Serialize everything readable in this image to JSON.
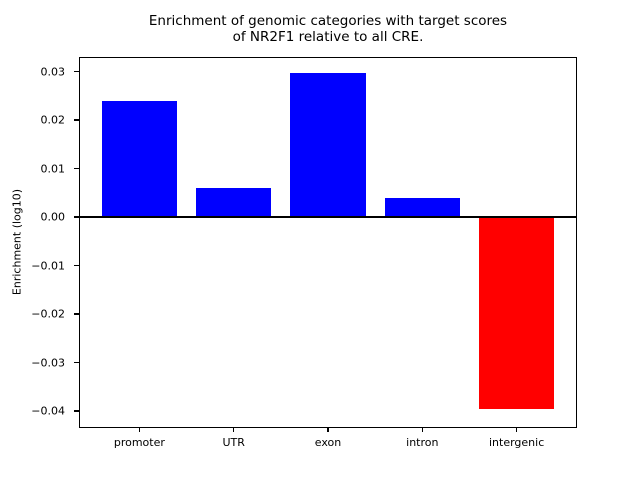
{
  "chart_data": {
    "type": "bar",
    "title_lines": [
      "Enrichment of genomic categories with target scores",
      "of NR2F1 relative to all CRE."
    ],
    "ylabel": "Enrichment (log10)",
    "categories": [
      "promoter",
      "UTR",
      "exon",
      "intron",
      "intergenic"
    ],
    "values": [
      0.024,
      0.006,
      0.0296,
      0.004,
      -0.0395
    ],
    "bar_colors": [
      "#0000ff",
      "#0000ff",
      "#0000ff",
      "#0000ff",
      "#ff0000"
    ],
    "positive_color": "#0000ff",
    "negative_color": "#ff0000",
    "yticks": [
      0.03,
      0.02,
      0.01,
      0.0,
      -0.01,
      -0.02,
      -0.03,
      -0.04
    ],
    "ytick_labels": [
      "0.03",
      "0.02",
      "0.01",
      "0.00",
      "−0.01",
      "−0.02",
      "−0.03",
      "−0.04"
    ],
    "ylim": [
      -0.0435,
      0.033
    ],
    "bar_width_fraction": 0.8,
    "grid": false,
    "zero_line": true,
    "legend": "none"
  }
}
